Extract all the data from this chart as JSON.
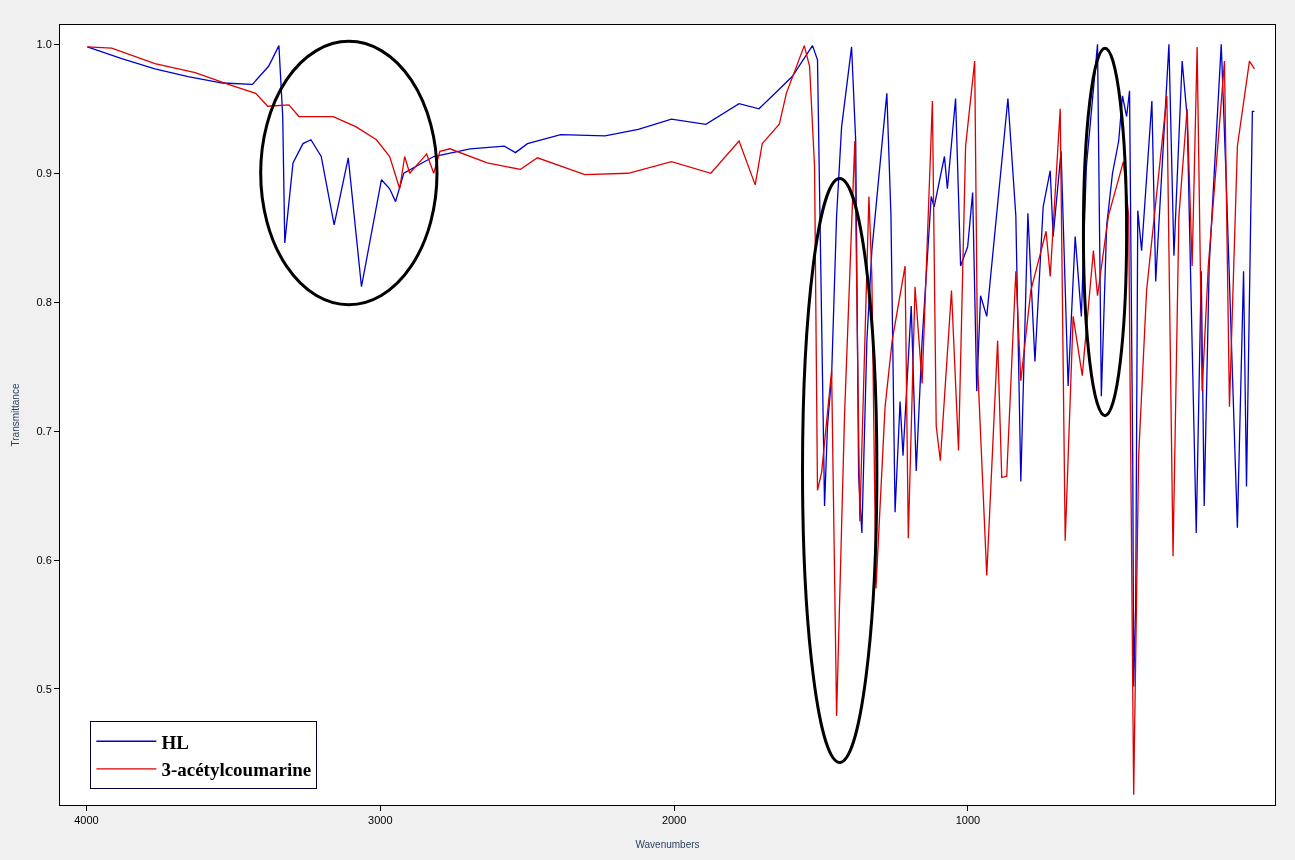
{
  "chart_data": {
    "type": "line",
    "xlabel": "Wavenumbers",
    "ylabel": "Transmittance",
    "xlim": [
      4090,
      -45
    ],
    "ylim": [
      0.41,
      1.015
    ],
    "xticks": [
      4000,
      3000,
      2000,
      1000
    ],
    "yticks": [
      0.5,
      0.6,
      0.7,
      0.8,
      0.9,
      {
        "value": 1,
        "label": "1.0"
      }
    ],
    "legend": "bottom left",
    "marker": "none",
    "line_style": "solid",
    "series": [
      {
        "name": "HL",
        "color": "#0000cc",
        "x": [
          3997,
          3880,
          3767,
          3654,
          3537,
          3435,
          3380,
          3345,
          3332,
          3325,
          3297,
          3263,
          3236,
          3201,
          3157,
          3109,
          3064,
          2996,
          2968,
          2948,
          2920,
          2818,
          2694,
          2578,
          2540,
          2499,
          2386,
          2235,
          2122,
          2009,
          1892,
          1779,
          1711,
          1666,
          1598,
          1529,
          1512,
          1509,
          1488,
          1478,
          1464,
          1447,
          1430,
          1396,
          1382,
          1372,
          1361,
          1344,
          1327,
          1300,
          1276,
          1262,
          1248,
          1231,
          1221,
          1193,
          1176,
          1156,
          1125,
          1115,
          1080,
          1070,
          1042,
          1025,
          1001,
          984,
          970,
          957,
          936,
          864,
          837,
          820,
          796,
          772,
          744,
          720,
          710,
          683,
          659,
          635,
          614,
          597,
          559,
          546,
          528,
          508,
          487,
          474,
          460,
          450,
          439,
          436,
          429,
          422,
          409,
          374,
          361,
          316,
          299,
          271,
          254,
          223,
          206,
          196,
          179,
          138,
          121,
          83,
          62,
          52,
          32,
          25
        ],
        "values": [
          0.998,
          0.989,
          0.981,
          0.975,
          0.97,
          0.969,
          0.983,
          0.999,
          0.944,
          0.846,
          0.908,
          0.923,
          0.926,
          0.913,
          0.86,
          0.912,
          0.812,
          0.895,
          0.888,
          0.878,
          0.9,
          0.913,
          0.919,
          0.921,
          0.916,
          0.923,
          0.93,
          0.929,
          0.934,
          0.942,
          0.938,
          0.954,
          0.95,
          0.96,
          0.975,
          0.999,
          0.988,
          0.944,
          0.642,
          0.704,
          0.743,
          0.867,
          0.936,
          0.998,
          0.925,
          0.665,
          0.621,
          0.77,
          0.84,
          0.905,
          0.962,
          0.867,
          0.637,
          0.723,
          0.681,
          0.797,
          0.669,
          0.77,
          0.882,
          0.874,
          0.913,
          0.888,
          0.958,
          0.828,
          0.843,
          0.885,
          0.731,
          0.805,
          0.789,
          0.958,
          0.867,
          0.661,
          0.869,
          0.754,
          0.874,
          0.902,
          0.851,
          0.917,
          0.735,
          0.851,
          0.789,
          0.905,
          1.0,
          0.727,
          0.859,
          0.9,
          0.925,
          0.96,
          0.944,
          0.964,
          0.673,
          0.502,
          0.568,
          0.871,
          0.84,
          0.956,
          0.816,
          1.0,
          0.836,
          0.987,
          0.944,
          0.621,
          0.824,
          0.642,
          0.828,
          1.0,
          0.894,
          0.625,
          0.824,
          0.657,
          0.948,
          0.948
        ]
      },
      {
        "name": "3-acétylcoumarine",
        "color": "#dd0000",
        "x": [
          3997,
          3914,
          3767,
          3630,
          3517,
          3424,
          3383,
          3311,
          3277,
          3160,
          3082,
          3013,
          2968,
          2934,
          2917,
          2900,
          2842,
          2818,
          2797,
          2763,
          2636,
          2523,
          2465,
          2304,
          2156,
          2009,
          1875,
          1779,
          1724,
          1700,
          1642,
          1618,
          1557,
          1539,
          1522,
          1512,
          1498,
          1464,
          1447,
          1420,
          1396,
          1385,
          1368,
          1337,
          1327,
          1313,
          1282,
          1258,
          1214,
          1203,
          1180,
          1156,
          1121,
          1108,
          1094,
          1056,
          1032,
          1008,
          977,
          967,
          936,
          899,
          885,
          868,
          837,
          820,
          786,
          734,
          720,
          686,
          669,
          642,
          611,
          573,
          559,
          522,
          471,
          453,
          436,
          419,
          392,
          323,
          302,
          282,
          254,
          237,
          220,
          203,
          182,
          127,
          110,
          83,
          42,
          25
        ],
        "values": [
          0.998,
          0.997,
          0.985,
          0.978,
          0.969,
          0.962,
          0.952,
          0.953,
          0.944,
          0.944,
          0.936,
          0.926,
          0.913,
          0.888,
          0.913,
          0.9,
          0.915,
          0.9,
          0.917,
          0.919,
          0.908,
          0.903,
          0.912,
          0.899,
          0.9,
          0.909,
          0.9,
          0.925,
          0.891,
          0.923,
          0.938,
          0.962,
          0.999,
          0.983,
          0.905,
          0.654,
          0.668,
          0.747,
          0.479,
          0.712,
          0.859,
          0.925,
          0.63,
          0.882,
          0.82,
          0.578,
          0.719,
          0.77,
          0.828,
          0.617,
          0.812,
          0.737,
          0.956,
          0.704,
          0.677,
          0.809,
          0.685,
          0.921,
          0.987,
          0.75,
          0.588,
          0.77,
          0.664,
          0.665,
          0.824,
          0.739,
          0.809,
          0.855,
          0.82,
          0.95,
          0.615,
          0.789,
          0.743,
          0.84,
          0.805,
          0.867,
          0.909,
          0.867,
          0.418,
          0.681,
          0.809,
          0.96,
          0.603,
          0.867,
          0.95,
          0.828,
          0.998,
          0.731,
          0.828,
          0.987,
          0.719,
          0.921,
          0.987,
          0.981
        ]
      }
    ]
  }
}
